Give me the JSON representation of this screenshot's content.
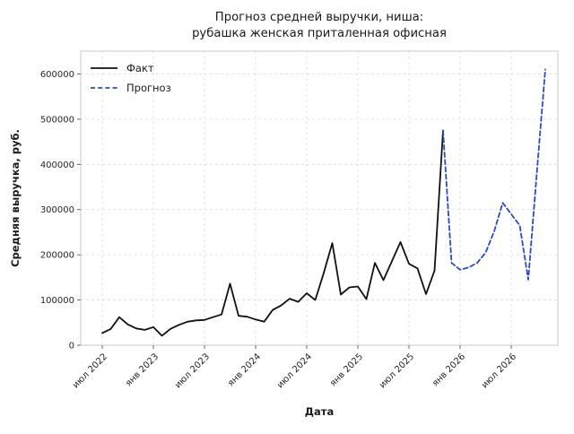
{
  "chart_data": {
    "type": "line",
    "title_line1": "Прогноз средней выручки, ниша:",
    "title_line2": "рубашка женская приталенная офисная",
    "xlabel": "Дата",
    "ylabel": "Средняя выручка, руб.",
    "x_tick_labels": [
      "июл 2022",
      "янв 2023",
      "июл 2023",
      "янв 2024",
      "июл 2024",
      "янв 2025",
      "июл 2025",
      "янв 2026",
      "июл 2026"
    ],
    "x_tick_month_offsets": [
      0,
      6,
      12,
      18,
      24,
      30,
      36,
      42,
      48
    ],
    "y_tick_labels": [
      "0",
      "100000",
      "200000",
      "300000",
      "400000",
      "500000",
      "600000"
    ],
    "y_tick_values": [
      0,
      100000,
      200000,
      300000,
      400000,
      500000,
      600000
    ],
    "ylim": [
      0,
      650000
    ],
    "grid": true,
    "grid_color": "#dcdcdc",
    "background_color": "#ffffff",
    "legend": {
      "position": "upper-left",
      "entries": [
        {
          "label": "Факт",
          "color": "#111111",
          "style": "solid"
        },
        {
          "label": "Прогноз",
          "color": "#2b4cc0",
          "style": "dashed"
        }
      ]
    },
    "series": [
      {
        "name": "Факт",
        "color": "#111111",
        "style": "solid",
        "start_month": "2022-07",
        "start_offset": 0,
        "values": [
          27000,
          36000,
          62000,
          46000,
          37000,
          34000,
          40000,
          21000,
          36000,
          45000,
          52000,
          55000,
          56000,
          62000,
          68000,
          136000,
          65000,
          63000,
          57000,
          52000,
          78000,
          88000,
          103000,
          96000,
          115000,
          100000,
          160000,
          226000,
          112000,
          128000,
          130000,
          102000,
          182000,
          144000,
          186000,
          228000,
          180000,
          170000,
          113000,
          165000,
          475000
        ]
      },
      {
        "name": "Прогноз",
        "color": "#2b4cc0",
        "style": "dashed",
        "start_month": "2025-11",
        "start_offset": 40,
        "values": [
          475000,
          182000,
          167000,
          172000,
          182000,
          205000,
          252000,
          315000,
          290000,
          265000,
          145000,
          380000,
          610000
        ]
      }
    ]
  }
}
